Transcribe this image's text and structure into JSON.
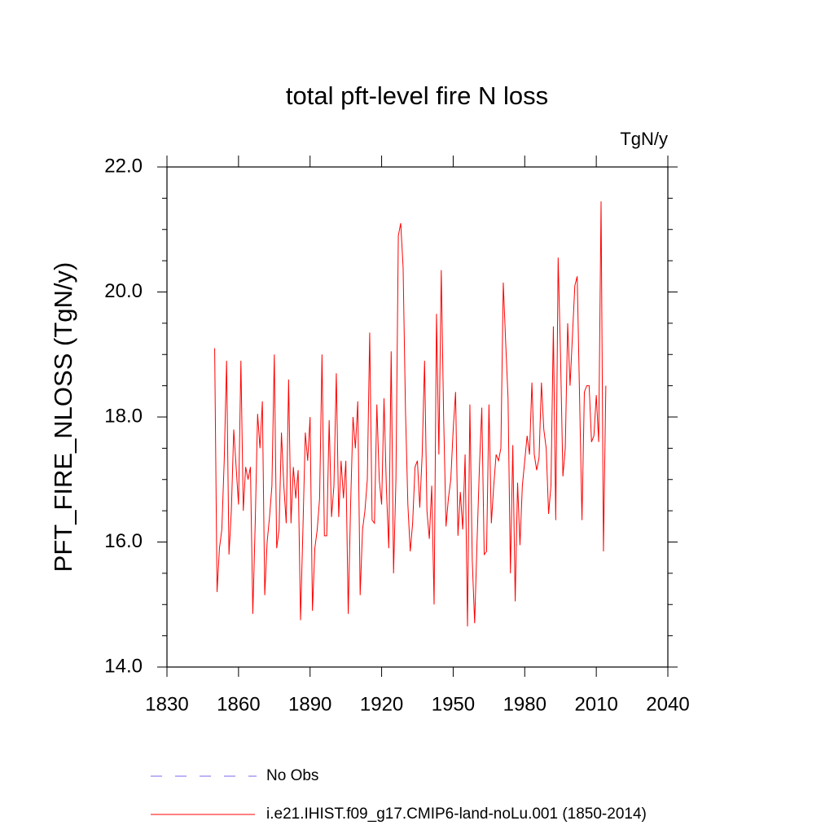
{
  "chart_data": {
    "type": "line",
    "title": "total pft-level fire N loss",
    "units": "TgN/y",
    "y_label": "PFT_FIRE_NLOSS  (TgN/y)",
    "x": [
      1850,
      1851,
      1852,
      1853,
      1854,
      1855,
      1856,
      1857,
      1858,
      1859,
      1860,
      1861,
      1862,
      1863,
      1864,
      1865,
      1866,
      1867,
      1868,
      1869,
      1870,
      1871,
      1872,
      1873,
      1874,
      1875,
      1876,
      1877,
      1878,
      1879,
      1880,
      1881,
      1882,
      1883,
      1884,
      1885,
      1886,
      1887,
      1888,
      1889,
      1890,
      1891,
      1892,
      1893,
      1894,
      1895,
      1896,
      1897,
      1898,
      1899,
      1900,
      1901,
      1902,
      1903,
      1904,
      1905,
      1906,
      1907,
      1908,
      1909,
      1910,
      1911,
      1912,
      1913,
      1914,
      1915,
      1916,
      1917,
      1918,
      1919,
      1920,
      1921,
      1922,
      1923,
      1924,
      1925,
      1926,
      1927,
      1928,
      1929,
      1930,
      1931,
      1932,
      1933,
      1934,
      1935,
      1936,
      1937,
      1938,
      1939,
      1940,
      1941,
      1942,
      1943,
      1944,
      1945,
      1946,
      1947,
      1948,
      1949,
      1950,
      1951,
      1952,
      1953,
      1954,
      1955,
      1956,
      1957,
      1958,
      1959,
      1960,
      1961,
      1962,
      1963,
      1964,
      1965,
      1966,
      1967,
      1968,
      1969,
      1970,
      1971,
      1972,
      1973,
      1974,
      1975,
      1976,
      1977,
      1978,
      1979,
      1980,
      1981,
      1982,
      1983,
      1984,
      1985,
      1986,
      1987,
      1988,
      1989,
      1990,
      1991,
      1992,
      1993,
      1994,
      1995,
      1996,
      1997,
      1998,
      1999,
      2000,
      2001,
      2002,
      2003,
      2004,
      2005,
      2006,
      2007,
      2008,
      2009,
      2010,
      2011,
      2012,
      2013,
      2014
    ],
    "series": [
      {
        "name": "i.e21.IHIST.f09_g17.CMIP6-land-noLu.001 (1850-2014)",
        "color": "#ff0000",
        "values": [
          19.1,
          15.2,
          15.9,
          16.2,
          17.3,
          18.9,
          15.8,
          16.5,
          17.8,
          17.2,
          16.6,
          18.9,
          16.5,
          17.2,
          17.0,
          17.2,
          14.85,
          16.3,
          18.05,
          17.5,
          18.25,
          15.15,
          16.0,
          16.4,
          16.9,
          19.0,
          15.9,
          16.2,
          17.75,
          16.9,
          16.3,
          18.6,
          16.3,
          17.2,
          16.7,
          17.15,
          14.75,
          16.2,
          17.75,
          17.3,
          18.0,
          14.9,
          15.9,
          16.2,
          16.7,
          19.0,
          16.1,
          16.1,
          17.95,
          16.4,
          16.9,
          18.7,
          16.4,
          17.3,
          16.7,
          17.3,
          14.85,
          16.6,
          18.0,
          17.5,
          18.25,
          15.15,
          16.2,
          16.5,
          17.0,
          19.35,
          16.35,
          16.3,
          18.2,
          17.0,
          16.6,
          18.3,
          16.85,
          15.9,
          19.05,
          15.5,
          17.0,
          20.9,
          21.1,
          20.4,
          18.1,
          16.6,
          15.85,
          16.3,
          17.2,
          17.3,
          16.55,
          17.4,
          18.9,
          16.5,
          16.05,
          16.9,
          15.0,
          19.65,
          17.4,
          20.35,
          18.0,
          16.25,
          16.7,
          17.0,
          17.8,
          18.4,
          16.1,
          16.8,
          16.2,
          17.4,
          14.65,
          18.2,
          15.7,
          14.7,
          16.0,
          17.2,
          18.15,
          15.8,
          15.85,
          18.2,
          16.3,
          16.9,
          17.4,
          17.3,
          17.5,
          20.15,
          19.2,
          18.3,
          15.5,
          17.55,
          15.05,
          16.95,
          15.95,
          16.9,
          17.3,
          17.7,
          17.4,
          18.55,
          17.4,
          17.15,
          17.35,
          18.55,
          17.8,
          17.5,
          16.45,
          16.9,
          19.45,
          16.35,
          20.55,
          19.0,
          17.05,
          17.5,
          19.5,
          18.5,
          19.3,
          20.1,
          20.25,
          18.3,
          16.35,
          18.4,
          18.5,
          18.5,
          17.6,
          17.7,
          18.35,
          17.6,
          21.45,
          15.85,
          18.5
        ]
      }
    ],
    "legend_extra": [
      {
        "name": "No Obs",
        "color": "#7b68ee",
        "dashed": true
      }
    ],
    "xlim": [
      1830,
      2040
    ],
    "xticks": [
      1830,
      1860,
      1890,
      1920,
      1950,
      1980,
      2010,
      2040
    ],
    "ylim": [
      14,
      22
    ],
    "yticks": [
      {
        "value": 14,
        "label": "14.0"
      },
      {
        "value": 16,
        "label": "16.0"
      },
      {
        "value": 18,
        "label": "18.0"
      },
      {
        "value": 20,
        "label": "20.0"
      },
      {
        "value": 22,
        "label": "22.0"
      }
    ],
    "y_minor_ticks": [
      14.5,
      15,
      15.5,
      16.5,
      17,
      17.5,
      18.5,
      19,
      19.5,
      20.5,
      21,
      21.5
    ]
  }
}
